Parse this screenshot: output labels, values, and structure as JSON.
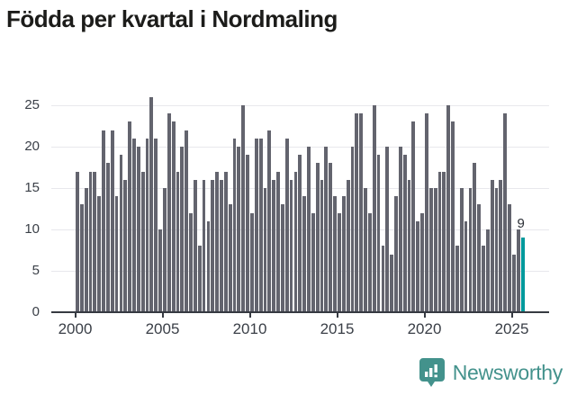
{
  "title": "Födda per kvartal i Nordmaling",
  "chart_data": {
    "type": "bar",
    "title": "Födda per kvartal i Nordmaling",
    "xlabel": "",
    "ylabel": "",
    "ylim": [
      0,
      27
    ],
    "grid": true,
    "legend": "none",
    "y_ticks": [
      0,
      5,
      10,
      15,
      20,
      25
    ],
    "x_tick_years": [
      "2000",
      "2005",
      "2010",
      "2015",
      "2020",
      "2025"
    ],
    "quarters_per_year": 4,
    "series_by_year": {
      "2000": [
        17,
        13,
        15,
        17
      ],
      "2001": [
        17,
        14,
        22,
        18
      ],
      "2002": [
        22,
        14,
        19,
        16
      ],
      "2003": [
        23,
        21,
        20,
        17
      ],
      "2004": [
        21,
        26,
        21,
        10
      ],
      "2005": [
        15,
        24,
        23,
        17
      ],
      "2006": [
        20,
        22,
        12,
        16
      ],
      "2007": [
        8,
        16,
        11,
        16
      ],
      "2008": [
        17,
        16,
        17,
        13
      ],
      "2009": [
        21,
        20,
        25,
        19
      ],
      "2010": [
        12,
        21,
        21,
        15
      ],
      "2011": [
        22,
        16,
        17,
        13
      ],
      "2012": [
        21,
        16,
        17,
        19
      ],
      "2013": [
        14,
        20,
        12,
        18
      ],
      "2014": [
        16,
        20,
        18,
        14
      ],
      "2015": [
        12,
        14,
        16,
        20
      ],
      "2016": [
        24,
        24,
        15,
        12
      ],
      "2017": [
        25,
        19,
        8,
        20
      ],
      "2018": [
        7,
        14,
        20,
        19
      ],
      "2019": [
        16,
        23,
        11,
        12
      ],
      "2020": [
        24,
        15,
        15,
        17
      ],
      "2021": [
        17,
        25,
        23,
        8
      ],
      "2022": [
        15,
        11,
        15,
        18
      ],
      "2023": [
        13,
        8,
        10,
        16
      ],
      "2024": [
        15,
        16,
        24,
        13
      ],
      "2025": [
        7,
        10,
        9
      ]
    },
    "highlight_last_bar": true,
    "last_bar_label": "9"
  },
  "footer": {
    "brand": "Newsworthy",
    "logo_icon": "bar-chart-speech-bubble-icon"
  },
  "colors": {
    "bar": "#63646e",
    "highlight": "#00999c",
    "grid": "#e8e8ec",
    "axis": "#363a42",
    "tick_text": "#3a3f47",
    "title_text": "#1c1c1a",
    "brand": "#43928c"
  }
}
